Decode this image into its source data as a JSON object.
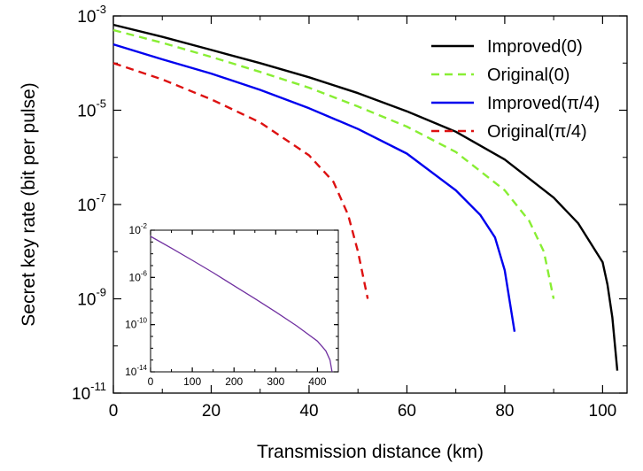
{
  "chart_data": [
    {
      "type": "line",
      "title": "",
      "xlabel": "Transmission distance  (km)",
      "ylabel": "Secret key rate (bit per pulse)",
      "xlim": [
        0,
        105
      ],
      "ylim_log10": [
        -11,
        -3
      ],
      "y_scale": "log",
      "grid": false,
      "legend_position": "top-right",
      "x_ticks": [
        "0",
        "20",
        "40",
        "60",
        "80",
        "100"
      ],
      "y_ticks": [
        {
          "base": "10",
          "exp": "-3"
        },
        {
          "base": "10",
          "exp": "-5"
        },
        {
          "base": "10",
          "exp": "-7"
        },
        {
          "base": "10",
          "exp": "-9"
        },
        {
          "base": "10",
          "exp": "-11"
        }
      ],
      "series": [
        {
          "name": "Improved(0)",
          "color": "#000000",
          "style": "solid",
          "x": [
            0,
            10,
            20,
            30,
            40,
            50,
            60,
            70,
            80,
            90,
            95,
            100,
            101,
            102,
            103
          ],
          "y": [
            0.00065,
            0.00036,
            0.00019,
            0.0001,
            5e-05,
            2.3e-05,
            9.5e-06,
            3.5e-06,
            9e-07,
            1.4e-07,
            4e-08,
            6e-09,
            2e-09,
            4e-10,
            3e-11
          ]
        },
        {
          "name": "Original(0)",
          "color": "#88ee33",
          "style": "dashed",
          "x": [
            0,
            10,
            20,
            30,
            40,
            50,
            60,
            70,
            80,
            85,
            88,
            90
          ],
          "y": [
            0.0005,
            0.00027,
            0.000135,
            6.5e-05,
            3e-05,
            1.2e-05,
            4.5e-06,
            1.3e-06,
            2e-07,
            4.5e-08,
            1e-08,
            1e-09
          ]
        },
        {
          "name": "Improved(π/4)",
          "color": "#0000ee",
          "style": "solid",
          "x": [
            0,
            10,
            20,
            30,
            40,
            50,
            60,
            70,
            75,
            78,
            80,
            82
          ],
          "y": [
            0.00025,
            0.00012,
            6e-05,
            2.7e-05,
            1.1e-05,
            4e-06,
            1.2e-06,
            2e-07,
            6e-08,
            2e-08,
            4e-09,
            2e-10
          ]
        },
        {
          "name": "Original(π/4)",
          "color": "#dd1111",
          "style": "dashed",
          "x": [
            0,
            10,
            20,
            30,
            40,
            45,
            48,
            50,
            52
          ],
          "y": [
            0.0001,
            4.5e-05,
            1.7e-05,
            5.5e-06,
            1.1e-06,
            3e-07,
            6e-08,
            1e-08,
            1e-09
          ]
        }
      ]
    },
    {
      "type": "line",
      "title": "",
      "xlabel": "",
      "ylabel": "",
      "xlim": [
        0,
        450
      ],
      "ylim_log10": [
        -14,
        -2
      ],
      "y_scale": "log",
      "grid": false,
      "x_ticks": [
        "0",
        "100",
        "200",
        "300",
        "400"
      ],
      "y_ticks": [
        {
          "base": "10",
          "exp": "-2"
        },
        {
          "base": "10",
          "exp": "-6"
        },
        {
          "base": "10",
          "exp": "-10"
        },
        {
          "base": "10",
          "exp": "-14"
        }
      ],
      "series": [
        {
          "color": "#7030a0",
          "style": "solid",
          "x": [
            0,
            50,
            100,
            150,
            200,
            250,
            300,
            350,
            400,
            420,
            430,
            435
          ],
          "y": [
            0.003,
            0.0003,
            2.8e-05,
            2.5e-06,
            2e-07,
            1.6e-08,
            1.2e-09,
            8e-11,
            4e-12,
            6e-13,
            1e-13,
            1e-14
          ]
        }
      ]
    }
  ]
}
